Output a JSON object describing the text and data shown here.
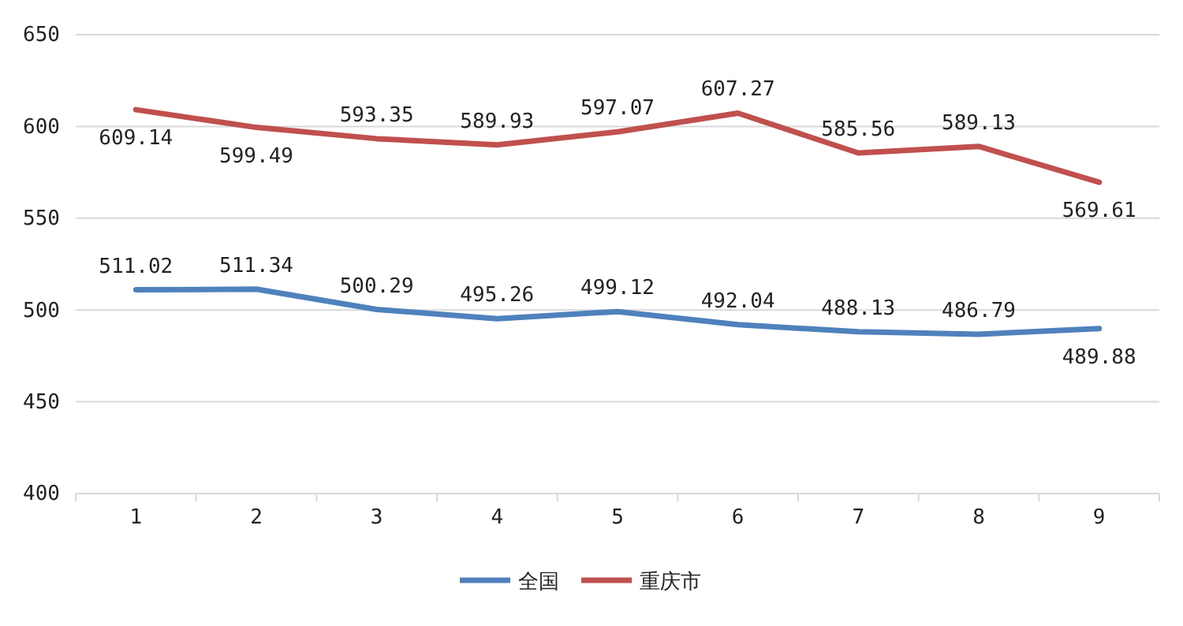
{
  "chart_data": {
    "type": "line",
    "categories": [
      "1",
      "2",
      "3",
      "4",
      "5",
      "6",
      "7",
      "8",
      "9"
    ],
    "series": [
      {
        "name": "全国",
        "color": "#4f81bd",
        "values": [
          511.02,
          511.34,
          500.29,
          495.26,
          499.12,
          492.04,
          488.13,
          486.79,
          489.88
        ]
      },
      {
        "name": "重庆市",
        "color": "#c0504d",
        "values": [
          609.14,
          599.49,
          593.35,
          589.93,
          597.07,
          607.27,
          585.56,
          589.13,
          569.61
        ]
      }
    ],
    "ylim": [
      400,
      650
    ],
    "yticks": [
      400,
      450,
      500,
      550,
      600,
      650
    ],
    "grid": "y",
    "legend": "bottom",
    "data_labels": true,
    "marker": "none",
    "line_style": "solid"
  }
}
